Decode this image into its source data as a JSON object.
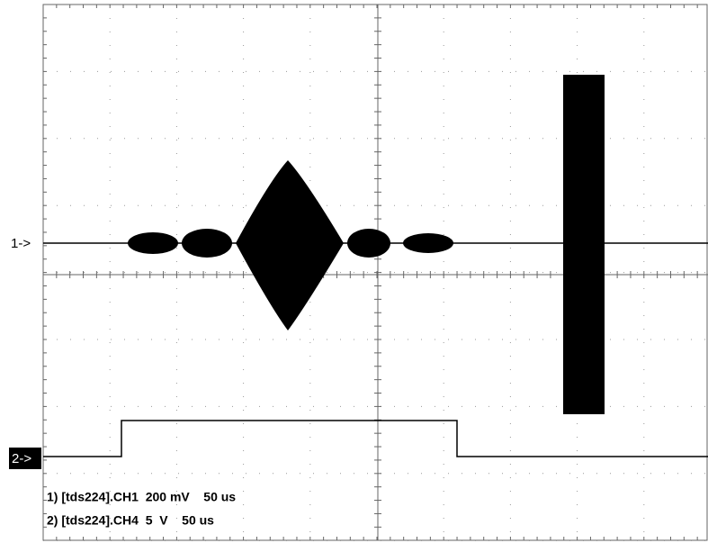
{
  "markers": {
    "ch1": "1->",
    "ch2": "2->"
  },
  "info": [
    "1) [tds224].CH1  200 mV    50 us",
    "2) [tds224].CH4  5  V    50 us"
  ]
}
